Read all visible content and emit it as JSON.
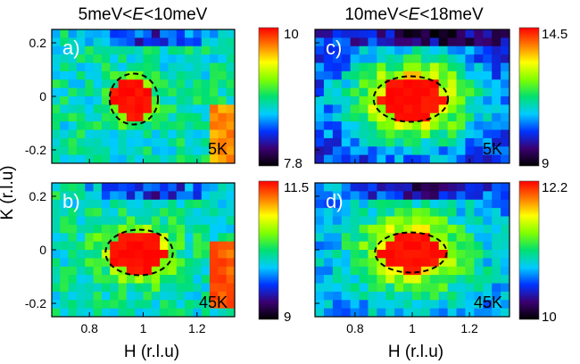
{
  "chart_data": {
    "type": "heatmap",
    "shared": {
      "xlabel": "H (r.l.u)",
      "ylabel": "K (r.l.u)",
      "xlim": [
        0.66,
        1.34
      ],
      "ylim": [
        -0.25,
        0.25
      ],
      "xticks": [
        0.8,
        1,
        1.2
      ],
      "xtick_labels": [
        "0.8",
        "1",
        "1.2"
      ],
      "yticks": [
        0.2,
        0,
        -0.2
      ],
      "ytick_labels": [
        "0.2",
        "0",
        "-0.2"
      ],
      "colormap": [
        "#000000",
        "#3a0070",
        "#0033ff",
        "#00ccff",
        "#00e070",
        "#80ff00",
        "#ffff00",
        "#ff7a00",
        "#ff0000"
      ]
    },
    "column_titles": [
      {
        "prefix": "5meV<",
        "var": "E",
        "suffix": "<10meV"
      },
      {
        "prefix": "10meV<",
        "var": "E",
        "suffix": "<18meV"
      }
    ],
    "panels": [
      {
        "id": "a",
        "label": "a)",
        "temperature": "5K",
        "energy_range": "5meV<E<10meV",
        "cmin": 7.8,
        "cmax": 10,
        "cb_top": "10",
        "cb_bottom": "7.8",
        "peak_center": [
          0.96,
          -0.01
        ],
        "peak_radii": [
          0.075,
          0.075
        ],
        "ellipse": {
          "cx": 0.965,
          "cy": -0.01,
          "rx": 0.09,
          "ry": 0.095
        },
        "gauss_sigma": [
          0.055,
          0.05
        ],
        "extra_hotspot": {
          "h": 1.3,
          "k": -0.15,
          "strength": 0.9
        },
        "background": 0.45
      },
      {
        "id": "b",
        "label": "b)",
        "temperature": "45K",
        "energy_range": "5meV<E<10meV",
        "cmin": 9,
        "cmax": 11.5,
        "cb_top": "11.5",
        "cb_bottom": "9",
        "peak_center": [
          0.98,
          -0.01
        ],
        "peak_radii": [
          0.1,
          0.08
        ],
        "ellipse": {
          "cx": 0.985,
          "cy": -0.01,
          "rx": 0.125,
          "ry": 0.085
        },
        "gauss_sigma": [
          0.09,
          0.07
        ],
        "extra_hotspot": {
          "h": 1.29,
          "k": -0.1,
          "strength": 0.95
        },
        "background": 0.45
      },
      {
        "id": "c",
        "label": "c)",
        "temperature": "5K",
        "energy_range": "10meV<E<18meV",
        "cmin": 9,
        "cmax": 14.5,
        "cb_top": "14.5",
        "cb_bottom": "9",
        "peak_center": [
          1.0,
          -0.01
        ],
        "peak_radii": [
          0.11,
          0.08
        ],
        "ellipse": {
          "cx": 0.995,
          "cy": -0.01,
          "rx": 0.13,
          "ry": 0.085
        },
        "gauss_sigma": [
          0.16,
          0.12
        ],
        "extra_hotspot": null,
        "background": 0.22
      },
      {
        "id": "d",
        "label": "d)",
        "temperature": "45K",
        "energy_range": "10meV<E<18meV",
        "cmin": 10,
        "cmax": 12.2,
        "cb_top": "12.2",
        "cb_bottom": "10",
        "peak_center": [
          1.0,
          -0.01
        ],
        "peak_radii": [
          0.11,
          0.07
        ],
        "ellipse": {
          "cx": 0.995,
          "cy": -0.01,
          "rx": 0.125,
          "ry": 0.075
        },
        "gauss_sigma": [
          0.13,
          0.1
        ],
        "extra_hotspot": {
          "h": 1.32,
          "k": 0.0,
          "strength": 0.45
        },
        "background": 0.35
      }
    ]
  }
}
